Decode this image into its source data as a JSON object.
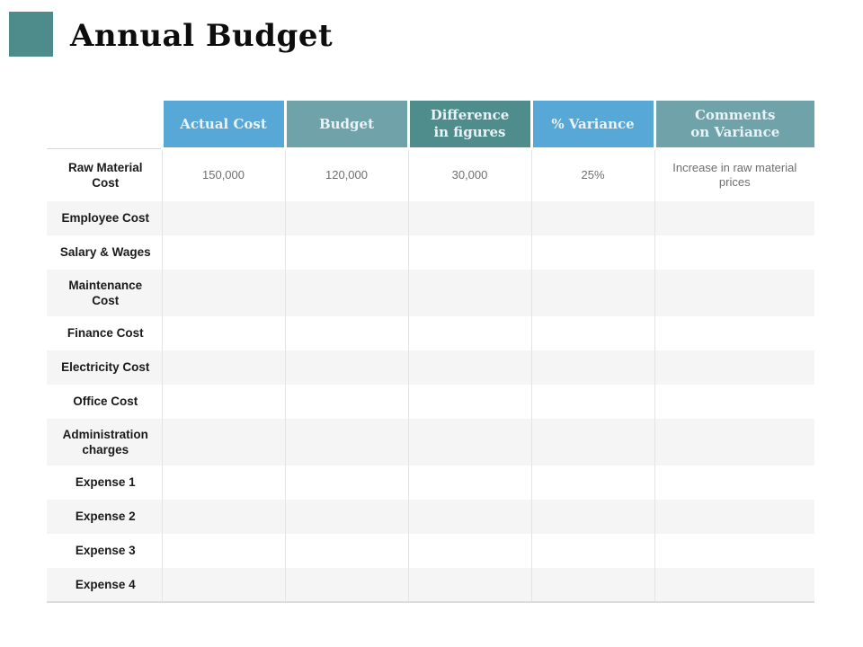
{
  "slide": {
    "title": "Annual Budget"
  },
  "accent": {
    "square_color": "#4E8C8C"
  },
  "colors": {
    "title_text": "#0d0d0d",
    "header_text": "#E9F2F6",
    "row_label_text": "#1a1a1a",
    "cell_text": "#6E6E6E",
    "blue_header": "#57A8D6",
    "teal_header": "#6FA3A9",
    "dark_teal_header": "#4F8D8C",
    "alt_row_bg": "#f5f5f5"
  },
  "table": {
    "header": [
      {
        "label": "Actual Cost",
        "bg": "#57A8D6"
      },
      {
        "label": "Budget",
        "bg": "#6FA3A9"
      },
      {
        "label": "Difference\nin figures",
        "bg": "#4F8D8C"
      },
      {
        "label": "% Variance",
        "bg": "#57A8D6"
      },
      {
        "label": "Comments\non Variance",
        "bg": "#6FA3A9"
      }
    ],
    "rows": [
      {
        "label": "Raw Material Cost",
        "cells": [
          "150,000",
          "120,000",
          "30,000",
          "25%",
          "Increase in raw material prices"
        ]
      },
      {
        "label": "Employee Cost",
        "cells": [
          "",
          "",
          "",
          "",
          ""
        ]
      },
      {
        "label": "Salary & Wages",
        "cells": [
          "",
          "",
          "",
          "",
          ""
        ]
      },
      {
        "label": "Maintenance Cost",
        "cells": [
          "",
          "",
          "",
          "",
          ""
        ]
      },
      {
        "label": "Finance Cost",
        "cells": [
          "",
          "",
          "",
          "",
          ""
        ]
      },
      {
        "label": "Electricity Cost",
        "cells": [
          "",
          "",
          "",
          "",
          ""
        ]
      },
      {
        "label": "Office Cost",
        "cells": [
          "",
          "",
          "",
          "",
          ""
        ]
      },
      {
        "label": "Administration charges",
        "cells": [
          "",
          "",
          "",
          "",
          ""
        ]
      },
      {
        "label": "Expense 1",
        "cells": [
          "",
          "",
          "",
          "",
          ""
        ]
      },
      {
        "label": "Expense 2",
        "cells": [
          "",
          "",
          "",
          "",
          ""
        ]
      },
      {
        "label": "Expense 3",
        "cells": [
          "",
          "",
          "",
          "",
          ""
        ]
      },
      {
        "label": "Expense 4",
        "cells": [
          "",
          "",
          "",
          "",
          ""
        ]
      }
    ]
  }
}
